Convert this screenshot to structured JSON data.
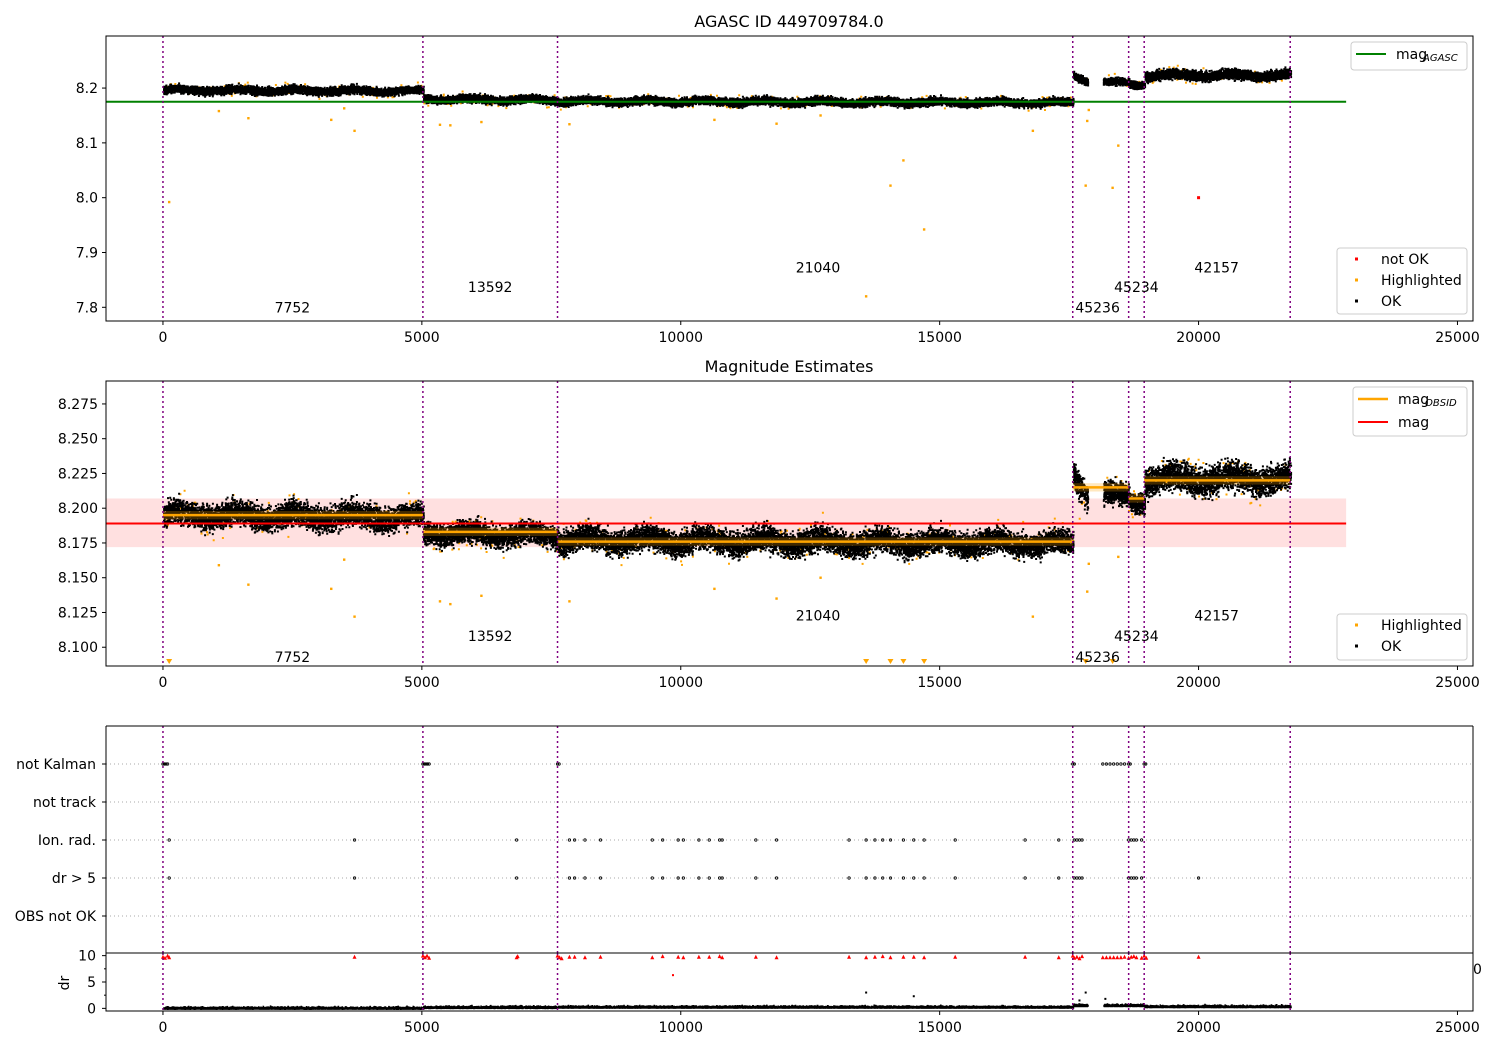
{
  "chart_data": [
    {
      "type": "scatter",
      "title": "AGASC ID 449709784.0",
      "xlim": [
        -1100,
        25300
      ],
      "ylim": [
        7.775,
        8.295
      ],
      "xticks": [
        0,
        5000,
        10000,
        15000,
        20000,
        25000
      ],
      "yticks": [
        7.8,
        7.9,
        8.0,
        8.1,
        8.2
      ],
      "mag_agasc": 8.175,
      "mag_agasc_xrange": [
        -1100,
        22850
      ],
      "legend_top": [
        {
          "label": "mag",
          "subscript": "AGASC",
          "color": "#008000"
        }
      ],
      "legend_bottom": [
        {
          "label": "not OK",
          "color": "#ff0000"
        },
        {
          "label": "Highlighted",
          "color": "#ffa500"
        },
        {
          "label": "OK",
          "color": "#000000"
        }
      ],
      "segments": [
        {
          "x0": 0,
          "x1": 5020,
          "level0": 8.198,
          "level1": 8.196,
          "spread": 0.009
        },
        {
          "x0": 5020,
          "x1": 7620,
          "level0": 8.182,
          "level1": 8.18,
          "spread": 0.009
        },
        {
          "x0": 7620,
          "x1": 17570,
          "level0": 8.178,
          "level1": 8.175,
          "spread": 0.009
        },
        {
          "x0": 17570,
          "x1": 17850,
          "level0": 8.225,
          "level1": 8.215,
          "spread": 0.009
        },
        {
          "x0": 18150,
          "x1": 18650,
          "level0": 8.212,
          "level1": 8.212,
          "spread": 0.008
        },
        {
          "x0": 18650,
          "x1": 18950,
          "level0": 8.208,
          "level1": 8.208,
          "spread": 0.008
        },
        {
          "x0": 18950,
          "x1": 21770,
          "level0": 8.225,
          "level1": 8.225,
          "spread": 0.011
        }
      ],
      "highlighted_outliers": [
        [
          120,
          7.992
        ],
        [
          1080,
          8.158
        ],
        [
          1650,
          8.145
        ],
        [
          3250,
          8.142
        ],
        [
          3500,
          8.163
        ],
        [
          3700,
          8.122
        ],
        [
          5350,
          8.133
        ],
        [
          5550,
          8.132
        ],
        [
          6150,
          8.138
        ],
        [
          7850,
          8.134
        ],
        [
          10650,
          8.142
        ],
        [
          11850,
          8.135
        ],
        [
          12700,
          8.15
        ],
        [
          13580,
          7.82
        ],
        [
          14050,
          8.022
        ],
        [
          14300,
          8.068
        ],
        [
          14700,
          7.942
        ],
        [
          16800,
          8.122
        ],
        [
          17820,
          8.022
        ],
        [
          17850,
          8.14
        ],
        [
          18340,
          8.018
        ],
        [
          18450,
          8.095
        ],
        [
          17880,
          8.16
        ]
      ],
      "not_ok_points": [
        [
          20000,
          8.0
        ]
      ],
      "obs_boundaries": [
        0,
        5020,
        7620,
        17570,
        18650,
        18950,
        21770
      ],
      "obs_labels": [
        {
          "text": "7752",
          "x": 2500,
          "y": 7.8
        },
        {
          "text": "13592",
          "x": 6320,
          "y": 7.837
        },
        {
          "text": "21040",
          "x": 12650,
          "y": 7.873
        },
        {
          "text": "45236",
          "x": 18050,
          "y": 7.8
        },
        {
          "text": "45234",
          "x": 18800,
          "y": 7.837
        },
        {
          "text": "42157",
          "x": 20350,
          "y": 7.873
        }
      ]
    },
    {
      "type": "scatter",
      "title": "Magnitude Estimates",
      "xlim": [
        -1100,
        25300
      ],
      "ylim": [
        8.0865,
        8.2915
      ],
      "xticks": [
        0,
        5000,
        10000,
        15000,
        20000,
        25000
      ],
      "yticks": [
        8.1,
        8.125,
        8.15,
        8.175,
        8.2,
        8.225,
        8.25,
        8.275
      ],
      "mag": 8.189,
      "mag_band": [
        8.172,
        8.207
      ],
      "mag_xrange": [
        -1100,
        22850
      ],
      "mag_obsid": [
        {
          "x0": 0,
          "x1": 5020,
          "value": 8.195
        },
        {
          "x0": 5020,
          "x1": 7620,
          "value": 8.183
        },
        {
          "x0": 7620,
          "x1": 17570,
          "value": 8.176
        },
        {
          "x0": 17570,
          "x1": 18650,
          "value": 8.215
        },
        {
          "x0": 18650,
          "x1": 18950,
          "value": 8.207
        },
        {
          "x0": 18950,
          "x1": 21770,
          "value": 8.22
        }
      ],
      "legend_top": [
        {
          "label": "mag",
          "subscript": "OBSID",
          "color": "#ffa500"
        },
        {
          "label": "mag",
          "subscript": "",
          "color": "#ff0000"
        }
      ],
      "legend_bottom": [
        {
          "label": "Highlighted",
          "color": "#ffa500"
        },
        {
          "label": "OK",
          "color": "#000000"
        }
      ],
      "segments": [
        {
          "x0": 0,
          "x1": 5020,
          "level0": 8.196,
          "level1": 8.194,
          "spread": 0.011
        },
        {
          "x0": 5020,
          "x1": 7620,
          "level0": 8.183,
          "level1": 8.181,
          "spread": 0.01
        },
        {
          "x0": 7620,
          "x1": 17570,
          "level0": 8.178,
          "level1": 8.175,
          "spread": 0.011
        },
        {
          "x0": 17570,
          "x1": 17850,
          "level0": 8.225,
          "level1": 8.21,
          "spread": 0.012
        },
        {
          "x0": 18150,
          "x1": 18650,
          "level0": 8.21,
          "level1": 8.21,
          "spread": 0.01
        },
        {
          "x0": 18650,
          "x1": 18950,
          "level0": 8.206,
          "level1": 8.206,
          "spread": 0.01
        },
        {
          "x0": 18950,
          "x1": 21770,
          "level0": 8.222,
          "level1": 8.222,
          "spread": 0.013
        }
      ],
      "highlighted_outliers": [
        [
          1080,
          8.159
        ],
        [
          1650,
          8.145
        ],
        [
          3250,
          8.142
        ],
        [
          3500,
          8.163
        ],
        [
          3700,
          8.122
        ],
        [
          5350,
          8.133
        ],
        [
          5550,
          8.131
        ],
        [
          6150,
          8.137
        ],
        [
          7850,
          8.133
        ],
        [
          10650,
          8.142
        ],
        [
          11850,
          8.135
        ],
        [
          12700,
          8.15
        ],
        [
          16800,
          8.122
        ],
        [
          17850,
          8.14
        ],
        [
          17880,
          8.16
        ],
        [
          18450,
          8.165
        ]
      ],
      "below_range_markers": [
        120,
        13580,
        14050,
        14300,
        14700,
        17820,
        18340
      ],
      "obs_boundaries": [
        0,
        5020,
        7620,
        17570,
        18650,
        18950,
        21770
      ],
      "obs_labels": [
        {
          "text": "7752",
          "x": 2500,
          "y": 8.093
        },
        {
          "text": "13592",
          "x": 6320,
          "y": 8.108
        },
        {
          "text": "21040",
          "x": 12650,
          "y": 8.123
        },
        {
          "text": "45236",
          "x": 18050,
          "y": 8.093
        },
        {
          "text": "45234",
          "x": 18800,
          "y": 8.108
        },
        {
          "text": "42157",
          "x": 20350,
          "y": 8.123
        }
      ]
    },
    {
      "type": "scatter",
      "title": "",
      "xlim": [
        -1100,
        25300
      ],
      "flag_rows": [
        "not Kalman",
        "not track",
        "Ion. rad.",
        "dr > 5",
        "OBS not OK"
      ],
      "flag_points": {
        "not Kalman": [
          0,
          30,
          60,
          90,
          5020,
          5050,
          5080,
          5110,
          5140,
          7620,
          7650,
          17570,
          17600,
          18150,
          18220,
          18290,
          18360,
          18430,
          18500,
          18570,
          18650,
          18680,
          18950,
          18980
        ],
        "not track": [],
        "Ion. rad.": [
          120,
          3700,
          6830,
          7850,
          7950,
          8150,
          8450,
          9450,
          9650,
          9950,
          10050,
          10350,
          10550,
          10750,
          10800,
          11450,
          11850,
          13250,
          13580,
          13750,
          13900,
          14050,
          14300,
          14500,
          14700,
          15300,
          16650,
          17300,
          17600,
          17650,
          17700,
          17750,
          18650,
          18700,
          18750,
          18800,
          18900
        ],
        "dr > 5": [
          120,
          3700,
          6830,
          7850,
          7950,
          8150,
          8450,
          9450,
          9650,
          9950,
          10050,
          10350,
          10550,
          10750,
          10800,
          11450,
          11850,
          13250,
          13580,
          13750,
          13900,
          14050,
          14300,
          14500,
          14700,
          15300,
          16650,
          17300,
          17600,
          17650,
          17700,
          17750,
          18650,
          18700,
          18750,
          18800,
          18900,
          20000
        ],
        "OBS not OK": []
      },
      "obs_boundaries": [
        0,
        5020,
        7620,
        17570,
        18650,
        18950,
        21770
      ]
    },
    {
      "type": "scatter",
      "title": "",
      "ylabel": "dr",
      "xlim": [
        -1100,
        25300
      ],
      "ylim": [
        -0.5,
        10.5
      ],
      "xticks": [
        0,
        5000,
        10000,
        15000,
        20000,
        25000
      ],
      "yticks": [
        0,
        5,
        10
      ],
      "overflow_tick": "0",
      "high_dr_points": [
        [
          0,
          9.8
        ],
        [
          40,
          9.6
        ],
        [
          90,
          10.0
        ],
        [
          120,
          9.7
        ],
        [
          3700,
          9.8
        ],
        [
          5020,
          10.0
        ],
        [
          5060,
          9.7
        ],
        [
          5100,
          10.0
        ],
        [
          5140,
          9.6
        ],
        [
          6830,
          9.7
        ],
        [
          6850,
          9.9
        ],
        [
          7620,
          10.0
        ],
        [
          7660,
          9.7
        ],
        [
          7700,
          9.5
        ],
        [
          7850,
          9.8
        ],
        [
          7950,
          9.8
        ],
        [
          8150,
          9.7
        ],
        [
          8450,
          9.8
        ],
        [
          9450,
          9.7
        ],
        [
          9650,
          9.9
        ],
        [
          9950,
          9.8
        ],
        [
          10050,
          9.7
        ],
        [
          10350,
          9.8
        ],
        [
          10550,
          9.8
        ],
        [
          10750,
          9.9
        ],
        [
          10800,
          9.7
        ],
        [
          11450,
          9.8
        ],
        [
          11850,
          9.7
        ],
        [
          13250,
          9.8
        ],
        [
          13580,
          9.7
        ],
        [
          13750,
          9.8
        ],
        [
          13900,
          9.9
        ],
        [
          14050,
          9.7
        ],
        [
          14300,
          9.8
        ],
        [
          14500,
          9.8
        ],
        [
          14700,
          9.7
        ],
        [
          15300,
          9.8
        ],
        [
          16650,
          9.8
        ],
        [
          17300,
          9.7
        ],
        [
          17570,
          10.0
        ],
        [
          17600,
          9.6
        ],
        [
          17650,
          9.8
        ],
        [
          17700,
          9.5
        ],
        [
          17750,
          9.9
        ],
        [
          18150,
          9.7
        ],
        [
          18220,
          9.7
        ],
        [
          18290,
          9.7
        ],
        [
          18360,
          9.7
        ],
        [
          18430,
          9.7
        ],
        [
          18500,
          9.7
        ],
        [
          18570,
          9.8
        ],
        [
          18650,
          9.6
        ],
        [
          18700,
          9.8
        ],
        [
          18750,
          9.9
        ],
        [
          18800,
          9.7
        ],
        [
          18900,
          9.6
        ],
        [
          18950,
          10.0
        ],
        [
          18990,
          9.6
        ],
        [
          20000,
          9.8
        ]
      ],
      "mid_dr_points": [
        [
          9850,
          6.3
        ],
        [
          13580,
          3.0
        ],
        [
          14500,
          2.3
        ],
        [
          17820,
          3.0
        ],
        [
          17700,
          1.5
        ],
        [
          18200,
          1.8
        ]
      ],
      "low_dr_segments": [
        {
          "x0": 0,
          "x1": 5020,
          "level": 0.0
        },
        {
          "x0": 5020,
          "x1": 7620,
          "level": 0.15
        },
        {
          "x0": 7620,
          "x1": 17570,
          "level": 0.2
        },
        {
          "x0": 17570,
          "x1": 17850,
          "level": 0.5
        },
        {
          "x0": 18150,
          "x1": 18950,
          "level": 0.5
        },
        {
          "x0": 18950,
          "x1": 21770,
          "level": 0.3
        }
      ],
      "obs_boundaries": [
        0,
        5020,
        7620,
        17570,
        18650,
        18950,
        21770
      ]
    }
  ]
}
